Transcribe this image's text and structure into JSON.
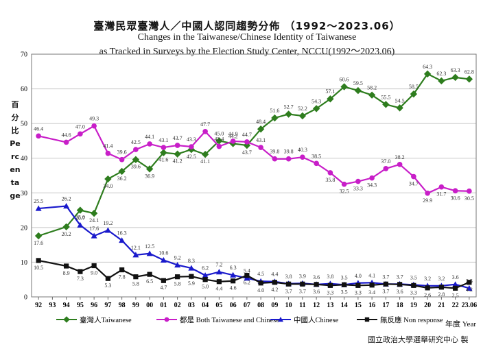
{
  "chart_data": {
    "type": "line",
    "title": "臺灣民眾臺灣人／中國人認同趨勢分佈 （1992～2023.06）",
    "subtitle_line1": "Changes in the Taiwanese/Chinese Identity of Taiwanese",
    "subtitle_line2": "as Tracked in Surveys by the Election Study Center, NCCU(1992～2023.06)",
    "ylabel": "百分比 Percentage",
    "xlabel": "年度 Year",
    "credit": "國立政治大學選舉研究中心 製",
    "ylim": [
      0,
      70
    ],
    "yticks": [
      "0",
      "10",
      "20",
      "30",
      "40",
      "50",
      "60",
      "70"
    ],
    "xcategories": [
      "92",
      "93",
      "94",
      "95",
      "96",
      "97",
      "98",
      "99",
      "00",
      "01",
      "02",
      "03",
      "04",
      "05",
      "06",
      "07",
      "08",
      "09",
      "10",
      "11",
      "12",
      "13",
      "14",
      "15",
      "16",
      "17",
      "18",
      "19",
      "20",
      "21",
      "22",
      "23.06"
    ],
    "grid": true,
    "legend_position": "bottom",
    "series": [
      {
        "name": "臺灣人Taiwanese",
        "color": "#2e7d1e",
        "marker": "diamond",
        "x": [
          "92",
          "94",
          "95",
          "96",
          "97",
          "98",
          "99",
          "00",
          "01",
          "02",
          "03",
          "04",
          "05",
          "06",
          "07",
          "08",
          "09",
          "10",
          "11",
          "12",
          "13",
          "14",
          "15",
          "16",
          "17",
          "18",
          "19",
          "20",
          "21",
          "22",
          "23.06"
        ],
        "values": [
          17.6,
          20.2,
          25.0,
          24.1,
          34.0,
          36.2,
          39.6,
          36.9,
          41.6,
          41.2,
          42.5,
          41.1,
          45.0,
          44.2,
          43.7,
          48.4,
          51.6,
          52.7,
          52.2,
          54.3,
          57.1,
          60.6,
          59.5,
          58.2,
          55.5,
          54.5,
          58.5,
          64.3,
          62.3,
          63.3,
          62.8
        ]
      },
      {
        "name": "都是 Both Taiwanese and Chinese",
        "color": "#c81ec8",
        "marker": "circle",
        "x": [
          "92",
          "94",
          "95",
          "96",
          "97",
          "98",
          "99",
          "00",
          "01",
          "02",
          "03",
          "04",
          "05",
          "06",
          "07",
          "08",
          "09",
          "10",
          "11",
          "12",
          "13",
          "14",
          "15",
          "16",
          "17",
          "18",
          "19",
          "20",
          "21",
          "22",
          "23.06"
        ],
        "values": [
          46.4,
          44.6,
          47.0,
          49.3,
          41.4,
          39.6,
          42.5,
          44.1,
          43.1,
          43.7,
          43.3,
          47.7,
          43.4,
          44.9,
          44.7,
          43.1,
          39.8,
          39.8,
          40.3,
          38.5,
          35.8,
          32.5,
          33.3,
          34.3,
          37.0,
          38.2,
          34.7,
          29.9,
          31.7,
          30.6,
          30.5
        ]
      },
      {
        "name": "中國人Chinese",
        "color": "#1a1acc",
        "marker": "triangle",
        "x": [
          "92",
          "94",
          "95",
          "96",
          "97",
          "98",
          "99",
          "00",
          "01",
          "02",
          "03",
          "04",
          "05",
          "06",
          "07",
          "08",
          "09",
          "10",
          "11",
          "12",
          "13",
          "14",
          "15",
          "16",
          "17",
          "18",
          "19",
          "20",
          "21",
          "22",
          "23.06"
        ],
        "values": [
          25.5,
          26.2,
          20.7,
          17.6,
          19.2,
          16.3,
          12.1,
          12.5,
          10.6,
          9.2,
          8.3,
          6.2,
          7.2,
          6.3,
          5.4,
          4.5,
          4.4,
          3.8,
          3.9,
          3.6,
          3.8,
          3.5,
          4.0,
          4.1,
          3.7,
          3.7,
          3.5,
          3.2,
          3.2,
          3.6,
          2.5
        ]
      },
      {
        "name": "無反應 Non response",
        "color": "#111111",
        "marker": "square",
        "x": [
          "92",
          "94",
          "95",
          "96",
          "97",
          "98",
          "99",
          "00",
          "01",
          "02",
          "03",
          "04",
          "05",
          "06",
          "07",
          "08",
          "09",
          "10",
          "11",
          "12",
          "13",
          "14",
          "15",
          "16",
          "17",
          "18",
          "19",
          "20",
          "21",
          "22",
          "23.06"
        ],
        "values": [
          10.5,
          8.9,
          7.3,
          9.0,
          5.3,
          7.8,
          5.8,
          6.5,
          4.7,
          5.8,
          5.9,
          5.0,
          4.4,
          4.6,
          6.2,
          4.0,
          4.2,
          3.7,
          3.7,
          3.6,
          3.3,
          3.5,
          3.3,
          3.4,
          3.7,
          3.6,
          3.3,
          2.6,
          2.8,
          2.5,
          4.2
        ]
      }
    ]
  }
}
